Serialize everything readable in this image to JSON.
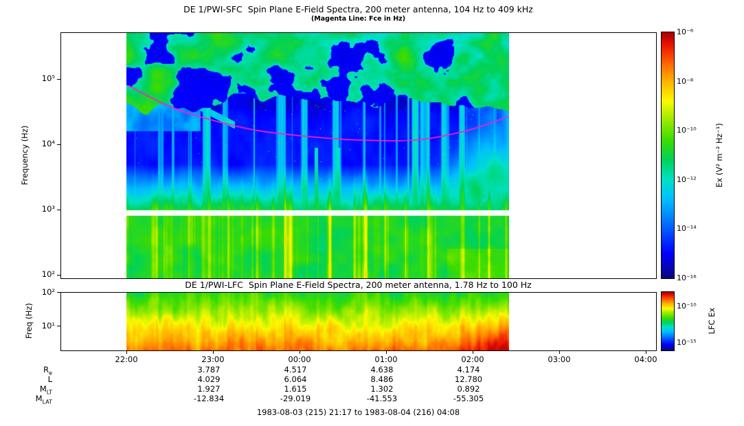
{
  "figure": {
    "footer": "1983-08-03 (215) 21:17 to 1983-08-04 (216) 04:08",
    "background": "#ffffff"
  },
  "sfc": {
    "title": "DE 1/PWI-SFC  Spin Plane E-Field Spectra, 200 meter antenna, 104 Hz to 409 kHz",
    "subtitle": "(Magenta Line: Fce in Hz)",
    "ylabel": "Frequency (Hz)",
    "yticks": [
      {
        "label": "10⁵",
        "logf": 5
      },
      {
        "label": "10⁴",
        "logf": 4
      },
      {
        "label": "10³",
        "logf": 3
      },
      {
        "label": "10²",
        "logf": 2
      }
    ],
    "colorbar": {
      "label": "Ex (V² m⁻² Hz⁻¹)",
      "log_range": [
        -16,
        -6
      ],
      "ticks": [
        {
          "label": "10⁻⁶",
          "value": -6
        },
        {
          "label": "10⁻⁸",
          "value": -8
        },
        {
          "label": "10⁻¹⁰",
          "value": -10
        },
        {
          "label": "10⁻¹²",
          "value": -12
        },
        {
          "label": "10⁻¹⁴",
          "value": -14
        },
        {
          "label": "10⁻¹⁶",
          "value": -16
        }
      ]
    }
  },
  "lfc": {
    "title": "DE 1/PWI-LFC  Spin Plane E-Field Spectra, 200 meter antenna, 1.78 Hz to 100 Hz",
    "ylabel": "Freq (Hz)",
    "yticks": [
      {
        "label": "10²",
        "logf": 2
      },
      {
        "label": "10¹",
        "logf": 1
      }
    ],
    "colorbar": {
      "label": "LFC Ex",
      "log_range": [
        -16,
        -8
      ],
      "ticks": [
        {
          "label": "10⁻¹⁰",
          "value": -10
        },
        {
          "label": "10⁻¹⁵",
          "value": -15
        }
      ]
    }
  },
  "time_axis": {
    "tick_labels": [
      "22:00",
      "23:00",
      "00:00",
      "01:00",
      "02:00",
      "03:00",
      "04:00"
    ]
  },
  "ephemeris": {
    "value_columns_time": [
      "23:00",
      "00:00",
      "01:00",
      "02:00"
    ],
    "rows": [
      {
        "main": "R",
        "sub": "e",
        "values": [
          "3.787",
          "4.517",
          "4.638",
          "4.174"
        ]
      },
      {
        "main": "L",
        "sub": "",
        "values": [
          "4.029",
          "6.064",
          "8.486",
          "12.780"
        ]
      },
      {
        "main": "M",
        "sub": "LT",
        "values": [
          "1.927",
          "1.615",
          "1.302",
          "0.892"
        ]
      },
      {
        "main": "M",
        "sub": "LAT",
        "values": [
          "-12.834",
          "-29.019",
          "-41.553",
          "-55.305"
        ]
      }
    ]
  },
  "chart_data": {
    "type": "heatmap",
    "panels": [
      {
        "name": "SFC spectrogram",
        "title": "DE 1/PWI-SFC Spin Plane E-Field Spectra, 200 meter antenna, 104 Hz to 409 kHz",
        "x_axis": {
          "start": "1983-08-03 21:17",
          "end": "1983-08-04 04:08",
          "tick_labels": [
            "22:00",
            "23:00",
            "00:00",
            "01:00",
            "02:00",
            "03:00",
            "04:00"
          ]
        },
        "data_coverage": {
          "start": "22:00",
          "end": "02:26"
        },
        "y_axis": {
          "scale": "log",
          "unit": "Hz",
          "range_hz": [
            104,
            409000
          ]
        },
        "z_axis": {
          "quantity": "Ex",
          "unit": "V² m⁻² Hz⁻¹",
          "scale": "log",
          "range": [
            1e-16,
            1e-06
          ]
        },
        "data_gap_hz": [
          820,
          980
        ],
        "features": [
          "Patchy green/cyan auroral kilometric radiation and continuum above ~50-100 kHz for the whole pass, brightest at the very top and after 23:30",
          "Descending green/cyan arc from ~150 kHz at 22:10 to ~35 kHz near 23:10",
          "Quiet dark-blue band between ~2 kHz and ~50 kHz with sparse narrow vertical cyan bursts and isolated yellow specks",
          "Strong green emission below ~2 kHz with vertical yellow burst striations, most intense 23:45-00:45 and 01:45-02:25",
          "Narrow horizontal white data gap near 0.8-1 kHz",
          "Broadband green enhancement 3-20 kHz after 01:50"
        ]
      },
      {
        "name": "LFC spectrogram",
        "title": "DE 1/PWI-LFC Spin Plane E-Field Spectra, 200 meter antenna, 1.78 Hz to 100 Hz",
        "data_coverage": {
          "start": "22:00",
          "end": "02:26"
        },
        "y_axis": {
          "scale": "log",
          "unit": "Hz",
          "range_hz": [
            1.78,
            100
          ]
        },
        "z_axis": {
          "quantity": "LFC Ex",
          "scale": "log",
          "range": [
            1e-16,
            1e-08
          ]
        },
        "features": [
          "Intensity increases toward low frequency: green near 100 Hz, yellow-orange below ~30 Hz, red near a few Hz",
          "Vertical striations aligned with SFC low-frequency bursts",
          "Emission reddens and intensifies after ~01:30 until data end at ~02:25"
        ]
      }
    ],
    "fce_line": {
      "label": "Fce (electron cyclotron frequency)",
      "color": "#ff1ecb",
      "points_hours_after_2200_vs_hz": [
        [
          0.02,
          80000
        ],
        [
          0.3,
          50000
        ],
        [
          0.6,
          33000
        ],
        [
          1.0,
          23000
        ],
        [
          1.5,
          16000
        ],
        [
          2.0,
          13500
        ],
        [
          2.5,
          11800
        ],
        [
          3.0,
          11200
        ],
        [
          3.4,
          11500
        ],
        [
          3.8,
          14500
        ],
        [
          4.1,
          18500
        ],
        [
          4.42,
          27000
        ]
      ]
    },
    "ephemeris_table": {
      "columns": [
        "23:00",
        "00:00",
        "01:00",
        "02:00"
      ],
      "Re": [
        3.787,
        4.517,
        4.638,
        4.174
      ],
      "L": [
        4.029,
        6.064,
        8.486,
        12.78
      ],
      "MLT": [
        1.927,
        1.615,
        1.302,
        0.892
      ],
      "MLAT": [
        -12.834,
        -29.019,
        -41.553,
        -55.305
      ]
    }
  }
}
